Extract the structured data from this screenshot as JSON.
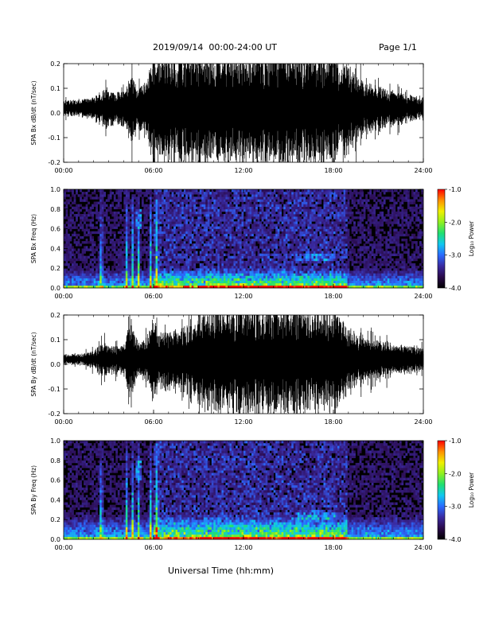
{
  "header": {
    "title": "2019/09/14  00:00-24:00 UT",
    "page": "Page 1/1"
  },
  "footer": {
    "xlabel": "Universal Time (hh:mm)"
  },
  "colors": {
    "trace": "#000000",
    "colormap": [
      "#000000",
      "#2a0a4a",
      "#3a2aa0",
      "#2a6aff",
      "#10c8f0",
      "#20e070",
      "#90f020",
      "#f0f000",
      "#ff9000",
      "#ff0000"
    ]
  },
  "chart_data": [
    {
      "type": "line",
      "id": "bx-timeseries",
      "ylabel": "SPA Bx dB/dt (nT/sec)",
      "xlim": [
        0,
        24
      ],
      "ylim": [
        -0.2,
        0.2
      ],
      "x_ticks": [
        "00:00",
        "06:00",
        "12:00",
        "18:00",
        "24:00"
      ],
      "y_ticks": [
        "0.2",
        "0.1",
        "0.0",
        "-0.1",
        "-0.2"
      ],
      "envelope": {
        "hours": [
          0,
          1,
          2,
          2.7,
          3,
          4,
          4.5,
          5,
          5.5,
          6,
          6.3,
          7,
          8,
          9,
          10,
          10.5,
          11,
          12,
          13,
          14,
          15,
          16,
          17,
          18,
          19,
          20,
          21,
          22,
          23,
          24
        ],
        "amplitude": [
          0.03,
          0.03,
          0.04,
          0.08,
          0.06,
          0.06,
          0.12,
          0.07,
          0.1,
          0.2,
          0.2,
          0.2,
          0.2,
          0.19,
          0.2,
          0.2,
          0.2,
          0.2,
          0.2,
          0.2,
          0.2,
          0.2,
          0.2,
          0.2,
          0.15,
          0.1,
          0.08,
          0.06,
          0.05,
          0.04
        ]
      }
    },
    {
      "type": "heatmap",
      "id": "bx-spectrogram",
      "ylabel": "SPA Bx Freq (Hz)",
      "xlim": [
        0,
        24
      ],
      "ylim": [
        0.0,
        1.0
      ],
      "x_ticks": [
        "00:00",
        "06:00",
        "12:00",
        "18:00",
        "24:00"
      ],
      "y_ticks": [
        "1.0",
        "0.8",
        "0.6",
        "0.4",
        "0.2",
        "0.0"
      ],
      "colorbar": {
        "label": "Log₁₀ Power",
        "range": [
          -4.0,
          -1.0
        ],
        "ticks": [
          "-1.0",
          "-2.0",
          "-3.0",
          "-4.0"
        ]
      },
      "features": {
        "bright_columns_hours": [
          2.5,
          4.2,
          4.6,
          5.0,
          5.8,
          6.2
        ],
        "broadband_max_hz": 0.2,
        "band_16_18h_hz": [
          0.28,
          0.35
        ]
      }
    },
    {
      "type": "line",
      "id": "by-timeseries",
      "ylabel": "SPA By dB/dt (nT/sec)",
      "xlim": [
        0,
        24
      ],
      "ylim": [
        -0.2,
        0.2
      ],
      "x_ticks": [
        "00:00",
        "06:00",
        "12:00",
        "18:00",
        "24:00"
      ],
      "y_ticks": [
        "0.2",
        "0.1",
        "0.0",
        "-0.1",
        "-0.2"
      ],
      "envelope": {
        "hours": [
          0,
          1,
          2,
          2.7,
          3,
          4,
          4.5,
          5,
          5.5,
          6,
          6.3,
          7,
          8,
          9,
          10,
          10.5,
          11,
          12,
          13,
          14,
          15,
          16,
          17,
          18,
          19,
          20,
          21,
          22,
          23,
          24
        ],
        "amplitude": [
          0.02,
          0.02,
          0.03,
          0.07,
          0.05,
          0.05,
          0.14,
          0.06,
          0.08,
          0.16,
          0.1,
          0.1,
          0.12,
          0.15,
          0.2,
          0.2,
          0.2,
          0.2,
          0.2,
          0.2,
          0.2,
          0.18,
          0.18,
          0.18,
          0.12,
          0.08,
          0.07,
          0.06,
          0.05,
          0.04
        ]
      }
    },
    {
      "type": "heatmap",
      "id": "by-spectrogram",
      "ylabel": "SPA By Freq (Hz)",
      "xlim": [
        0,
        24
      ],
      "ylim": [
        0.0,
        1.0
      ],
      "x_ticks": [
        "00:00",
        "06:00",
        "12:00",
        "18:00",
        "24:00"
      ],
      "y_ticks": [
        "1.0",
        "0.8",
        "0.6",
        "0.4",
        "0.2",
        "0.0"
      ],
      "colorbar": {
        "label": "Log₁₀ Power",
        "range": [
          -4.0,
          -1.0
        ],
        "ticks": [
          "-1.0",
          "-2.0",
          "-3.0",
          "-4.0"
        ]
      },
      "features": {
        "bright_columns_hours": [
          2.5,
          4.2,
          4.6,
          5.0,
          5.8,
          6.2
        ],
        "broadband_max_hz": 0.25,
        "band_16_18h_hz": [
          0.2,
          0.3
        ]
      }
    }
  ]
}
